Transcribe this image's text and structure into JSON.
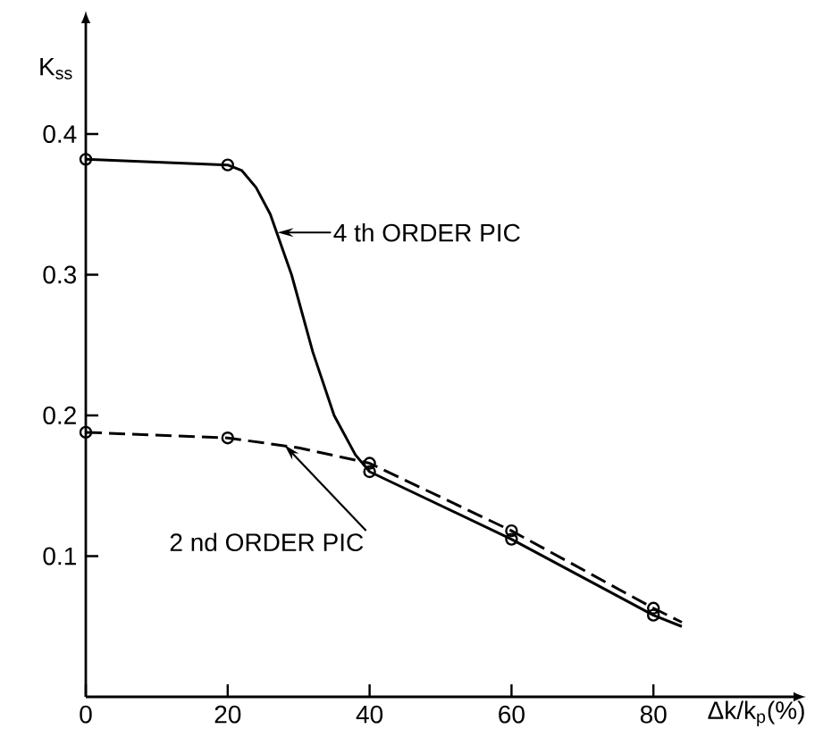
{
  "chart_data": {
    "type": "line",
    "xlabel": "Δk/k$_{p}$(%)",
    "ylabel": "K$_{ss}$",
    "xlim": [
      0,
      100
    ],
    "ylim": [
      0,
      0.48
    ],
    "xticks": [
      0,
      20,
      40,
      60,
      80
    ],
    "yticks": [
      0.1,
      0.2,
      0.3,
      0.4
    ],
    "grid": false,
    "series": [
      {
        "color": "#000000",
        "line_style": "solid",
        "marker": "none",
        "x": [
          0,
          20,
          22,
          24,
          26,
          29,
          32,
          35,
          38,
          40,
          60,
          80,
          84
        ],
        "values": [
          0.382,
          0.378,
          0.374,
          0.362,
          0.343,
          0.3,
          0.245,
          0.2,
          0.172,
          0.16,
          0.112,
          0.058,
          0.05
        ]
      },
      {
        "color": "#000000",
        "line_style": "dashed",
        "marker": "none",
        "x": [
          0,
          20,
          30,
          40,
          60,
          80,
          84
        ],
        "values": [
          0.188,
          0.184,
          0.177,
          0.166,
          0.118,
          0.063,
          0.053
        ]
      },
      {
        "type": "scatter",
        "color": "#000000",
        "marker": "circle",
        "x": [
          0,
          20,
          40,
          60,
          80
        ],
        "values": [
          0.382,
          0.378,
          0.16,
          0.112,
          0.058
        ]
      },
      {
        "type": "scatter",
        "color": "#000000",
        "marker": "circle",
        "x": [
          0,
          20,
          40,
          60,
          80
        ],
        "values": [
          0.188,
          0.184,
          0.166,
          0.118,
          0.063
        ]
      }
    ],
    "annotations": [
      {
        "text": "4 th ORDER PIC",
        "x": 27,
        "y": 0.33
      },
      {
        "text": "2 nd ORDER PIC",
        "x": 28,
        "y": 0.179
      }
    ]
  }
}
